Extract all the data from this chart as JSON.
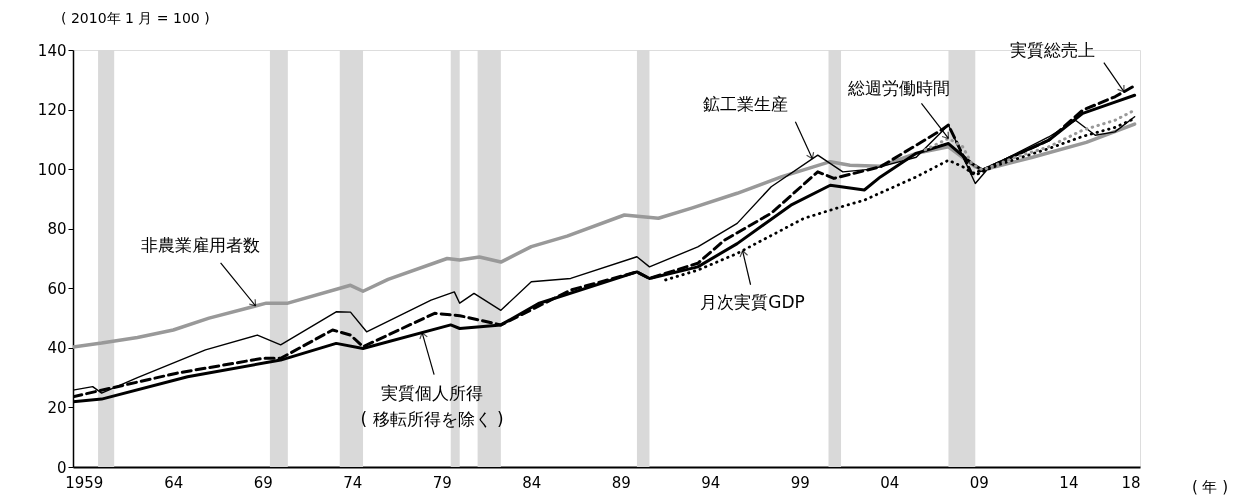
{
  "chart_data": {
    "type": "line",
    "ylabel": "( 2010年 1 月 = 100 )",
    "xlabel": "( 年 )",
    "xlim": [
      1958.4,
      2018
    ],
    "ylim": [
      0,
      140
    ],
    "xticks": [
      1959,
      {
        "value": 1964,
        "label": "64"
      },
      {
        "value": 1969,
        "label": "69"
      },
      {
        "value": 1974,
        "label": "74"
      },
      {
        "value": 1979,
        "label": "79"
      },
      {
        "value": 1984,
        "label": "84"
      },
      {
        "value": 1989,
        "label": "89"
      },
      {
        "value": 1994,
        "label": "94"
      },
      {
        "value": 1999,
        "label": "99"
      },
      {
        "value": 2004,
        "label": "04"
      },
      {
        "value": 2009,
        "label": "09"
      },
      {
        "value": 2014,
        "label": "14"
      },
      {
        "value": 2018,
        "label": "18"
      }
    ],
    "yticks": [
      0,
      20,
      40,
      60,
      80,
      100,
      120,
      140
    ],
    "grid": false,
    "bands": [
      {
        "axis": "x",
        "from": 1959.8,
        "to": 1960.7,
        "color": "#d9d9d9"
      },
      {
        "axis": "x",
        "from": 1969.4,
        "to": 1970.4,
        "color": "#d9d9d9"
      },
      {
        "axis": "x",
        "from": 1973.3,
        "to": 1974.6,
        "color": "#d9d9d9"
      },
      {
        "axis": "x",
        "from": 1979.5,
        "to": 1980.0,
        "color": "#d9d9d9"
      },
      {
        "axis": "x",
        "from": 1981.0,
        "to": 1982.3,
        "color": "#d9d9d9"
      },
      {
        "axis": "x",
        "from": 1989.9,
        "to": 1990.6,
        "color": "#d9d9d9"
      },
      {
        "axis": "x",
        "from": 2000.6,
        "to": 2001.3,
        "color": "#d9d9d9"
      },
      {
        "axis": "x",
        "from": 2007.3,
        "to": 2008.8,
        "color": "#d9d9d9"
      }
    ],
    "series": [
      {
        "color": "#999999",
        "line_style": "solid",
        "x": [
          1958.4,
          1960.0,
          1962,
          1964,
          1966,
          1969.2,
          1970.4,
          1973.9,
          1974.6,
          1976,
          1979.3,
          1980.0,
          1981.1,
          1982.3,
          1984,
          1986,
          1989.2,
          1991.1,
          1993,
          1995.5,
          1998,
          2000.7,
          2001.8,
          2003.5,
          2005.5,
          2007.3,
          2008.8,
          2009.2,
          2012,
          2015,
          2017.7
        ],
        "values": [
          40.3,
          41.6,
          43.5,
          46,
          50,
          55,
          55,
          61,
          59,
          63,
          70,
          69.5,
          70.5,
          68.8,
          74,
          77.5,
          84.6,
          83.5,
          87,
          91.9,
          97.5,
          102.5,
          101.3,
          101,
          105.3,
          107.5,
          100.8,
          99.7,
          104,
          109,
          115.1
        ]
      },
      {
        "color": "#000000",
        "line_style": "solid",
        "x": [
          1958.4,
          1959.5,
          1960.0,
          1962,
          1965.8,
          1968.7,
          1970.0,
          1973.1,
          1973.9,
          1974.8,
          1978.4,
          1979.7,
          1980.0,
          1980.8,
          1982.3,
          1984.0,
          1986.2,
          1989.9,
          1990.6,
          1993.3,
          1995.5,
          1997.4,
          2000.0,
          2001.4,
          2003.0,
          2005.5,
          2007.3,
          2008.8,
          2009.6,
          2012.9,
          2014.4,
          2015.5,
          2016.6,
          2017.7
        ],
        "values": [
          25.8,
          27,
          24.8,
          30,
          39.3,
          44.3,
          41,
          52.1,
          52,
          45.4,
          56,
          58.8,
          55,
          58.3,
          52.6,
          62.2,
          63.3,
          70.6,
          67.2,
          73.9,
          81.8,
          94.1,
          104.7,
          99.1,
          100,
          104,
          114.8,
          95.2,
          100.8,
          110.8,
          116.4,
          111.4,
          112.5,
          117.6
        ]
      },
      {
        "color": "#000000",
        "line_style": "dashed",
        "x": [
          1958.4,
          1964.2,
          1969.0,
          1970.0,
          1972.9,
          1973.9,
          1974.6,
          1978.6,
          1980.0,
          1982.3,
          1986.2,
          1989.9,
          1990.6,
          1993.3,
          1994.8,
          1997.4,
          2000.0,
          2000.9,
          2003.5,
          2006.9,
          2007.3,
          2008.6,
          2009.2,
          2012.9,
          2014.8,
          2016.6,
          2017.7
        ],
        "values": [
          23.6,
          31.5,
          36.5,
          36.5,
          46,
          44.3,
          40.4,
          51.6,
          50.8,
          47.7,
          59.4,
          65.5,
          63.3,
          68.4,
          76.2,
          85.2,
          99.1,
          96.9,
          100.8,
          113.1,
          114.8,
          98.5,
          99.7,
          109.7,
          119.8,
          124.3,
          128
        ]
      },
      {
        "color": "#000000",
        "line_style": "solid",
        "x": [
          1958.4,
          1960.0,
          1964.8,
          1970.0,
          1973.1,
          1974.6,
          1979.5,
          1980.0,
          1982.3,
          1984.4,
          1989.9,
          1990.6,
          1993.3,
          1995.5,
          1998.5,
          2000.7,
          2002.6,
          2003.5,
          2005.5,
          2007.3,
          2008.6,
          2009.2,
          2012.9,
          2014.8,
          2016.6,
          2017.7
        ],
        "values": [
          21.9,
          22.8,
          30.3,
          35.9,
          41.5,
          39.8,
          47.7,
          46.5,
          47.7,
          54.9,
          65.5,
          63.3,
          67.2,
          75,
          87.9,
          94.6,
          93,
          97.4,
          105.3,
          108.6,
          101.9,
          99.7,
          109.7,
          118.7,
          122.5,
          124.8
        ]
      },
      {
        "color": "#000000",
        "line_style": "dotted",
        "x": [
          1991.5,
          1993.3,
          1995.5,
          1999.2,
          2001.0,
          2002.6,
          2005.5,
          2007.3,
          2008.1,
          2008.8,
          2009.6,
          2010.3,
          2012.9,
          2014.8,
          2016.6,
          2017.7
        ],
        "values": [
          62.8,
          66.1,
          71.7,
          83.4,
          86.8,
          89.6,
          97.4,
          103,
          100.8,
          98,
          100.2,
          101.9,
          106.9,
          111,
          114,
          117
        ]
      },
      {
        "color": "#999999",
        "line_style": "dotted",
        "x": [
          2006.0,
          2007.3,
          2008.1,
          2008.6,
          2009.2,
          2011.1,
          2012.9,
          2014.8,
          2016.6,
          2017.7
        ],
        "values": [
          106.5,
          110.3,
          107.5,
          101.9,
          99.7,
          104.1,
          107.5,
          113.1,
          116.4,
          119.8
        ]
      }
    ],
    "annotations": [
      {
        "text": "非農業雇用者数",
        "x": 1968.6,
        "y": 54.1
      },
      {
        "text": "実質個人所得\n( 移転所得を除く )",
        "x": 1977.9,
        "y": 45.1
      },
      {
        "text": "月次実質GDP",
        "x": 1995.8,
        "y": 72.6
      },
      {
        "text": "鉱工業生産",
        "x": 1999.7,
        "y": 103.5
      },
      {
        "text": "総週労働時間",
        "x": 2007.3,
        "y": 110.3
      },
      {
        "text": "実質総売上",
        "x": 2017.1,
        "y": 126.0
      }
    ]
  }
}
